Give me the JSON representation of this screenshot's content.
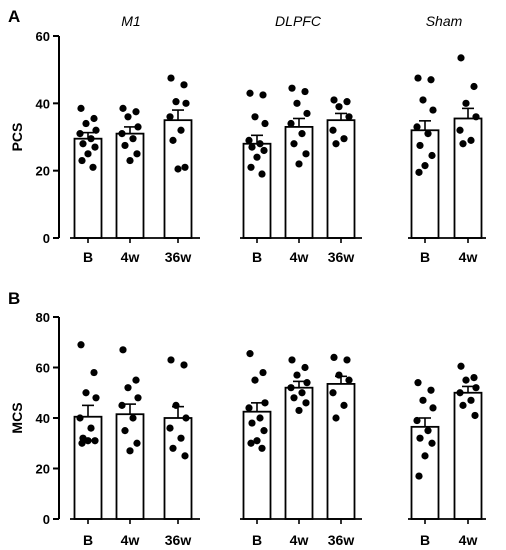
{
  "chart_data": [
    {
      "type": "bar",
      "panel": "A",
      "title": "",
      "xlabel": "",
      "ylabel": "PCS",
      "ylim": [
        0,
        60
      ],
      "yticks": [
        0,
        20,
        40,
        60
      ],
      "groups": [
        "M1",
        "DLPFC",
        "Sham"
      ],
      "bars": [
        {
          "group": "M1",
          "label": "B",
          "mean": 29.5,
          "sem": 1.8,
          "points": [
            38.5,
            35.5,
            34,
            32,
            31,
            29.5,
            28,
            27,
            25,
            23,
            21
          ]
        },
        {
          "group": "M1",
          "label": "4w",
          "mean": 31,
          "sem": 2.0,
          "points": [
            38.5,
            37.5,
            36,
            33,
            31,
            29.5,
            27.5,
            25,
            23
          ]
        },
        {
          "group": "M1",
          "label": "36w",
          "mean": 35,
          "sem": 3.0,
          "points": [
            47.5,
            45.5,
            40.5,
            40,
            36,
            32,
            29,
            21,
            20.5
          ]
        },
        {
          "group": "DLPFC",
          "label": "B",
          "mean": 28,
          "sem": 2.5,
          "points": [
            43,
            42.5,
            36,
            34,
            29,
            28,
            27,
            26,
            24,
            21,
            19
          ]
        },
        {
          "group": "DLPFC",
          "label": "4w",
          "mean": 33,
          "sem": 2.5,
          "points": [
            44.5,
            43.5,
            40,
            37,
            34,
            31,
            28,
            25,
            22
          ]
        },
        {
          "group": "DLPFC",
          "label": "36w",
          "mean": 35,
          "sem": 2.0,
          "points": [
            41,
            40.5,
            39,
            36,
            32,
            29.5,
            28
          ]
        },
        {
          "group": "Sham",
          "label": "B",
          "mean": 32,
          "sem": 2.8,
          "points": [
            47.5,
            47,
            41,
            38,
            33,
            31,
            27.5,
            24.5,
            21.5,
            19.5
          ]
        },
        {
          "group": "Sham",
          "label": "4w",
          "mean": 35.5,
          "sem": 3.0,
          "points": [
            53.5,
            45,
            40,
            36,
            32,
            29,
            28
          ]
        }
      ]
    },
    {
      "type": "bar",
      "panel": "B",
      "title": "",
      "xlabel": "",
      "ylabel": "MCS",
      "ylim": [
        0,
        80
      ],
      "yticks": [
        0,
        20,
        40,
        60,
        80
      ],
      "groups": [
        "M1",
        "DLPFC",
        "Sham"
      ],
      "bars": [
        {
          "group": "M1",
          "label": "B",
          "mean": 40.5,
          "sem": 4.5,
          "points": [
            69,
            58,
            50,
            48,
            40,
            36,
            32,
            31,
            31,
            30
          ]
        },
        {
          "group": "M1",
          "label": "4w",
          "mean": 41.5,
          "sem": 4.0,
          "points": [
            67,
            55,
            52,
            48,
            45,
            40,
            35,
            30,
            27
          ]
        },
        {
          "group": "M1",
          "label": "36w",
          "mean": 40,
          "sem": 4.5,
          "points": [
            63,
            61,
            45,
            40,
            36,
            32,
            28,
            25
          ]
        },
        {
          "group": "DLPFC",
          "label": "B",
          "mean": 42.5,
          "sem": 3.5,
          "points": [
            65.5,
            58,
            55,
            46,
            44,
            40,
            38,
            35,
            31,
            30,
            28
          ]
        },
        {
          "group": "DLPFC",
          "label": "4w",
          "mean": 52,
          "sem": 2.5,
          "points": [
            63,
            60,
            57,
            54,
            52,
            50,
            48,
            46,
            43
          ]
        },
        {
          "group": "DLPFC",
          "label": "36w",
          "mean": 53.5,
          "sem": 3.0,
          "points": [
            64,
            63,
            57,
            55,
            50,
            45,
            40
          ]
        },
        {
          "group": "Sham",
          "label": "B",
          "mean": 36.5,
          "sem": 3.5,
          "points": [
            54,
            51,
            47,
            44,
            39,
            35,
            32,
            30,
            25,
            17
          ]
        },
        {
          "group": "Sham",
          "label": "4w",
          "mean": 50,
          "sem": 2.5,
          "points": [
            60.5,
            56,
            55,
            52,
            50,
            47,
            45,
            41
          ]
        }
      ]
    }
  ]
}
